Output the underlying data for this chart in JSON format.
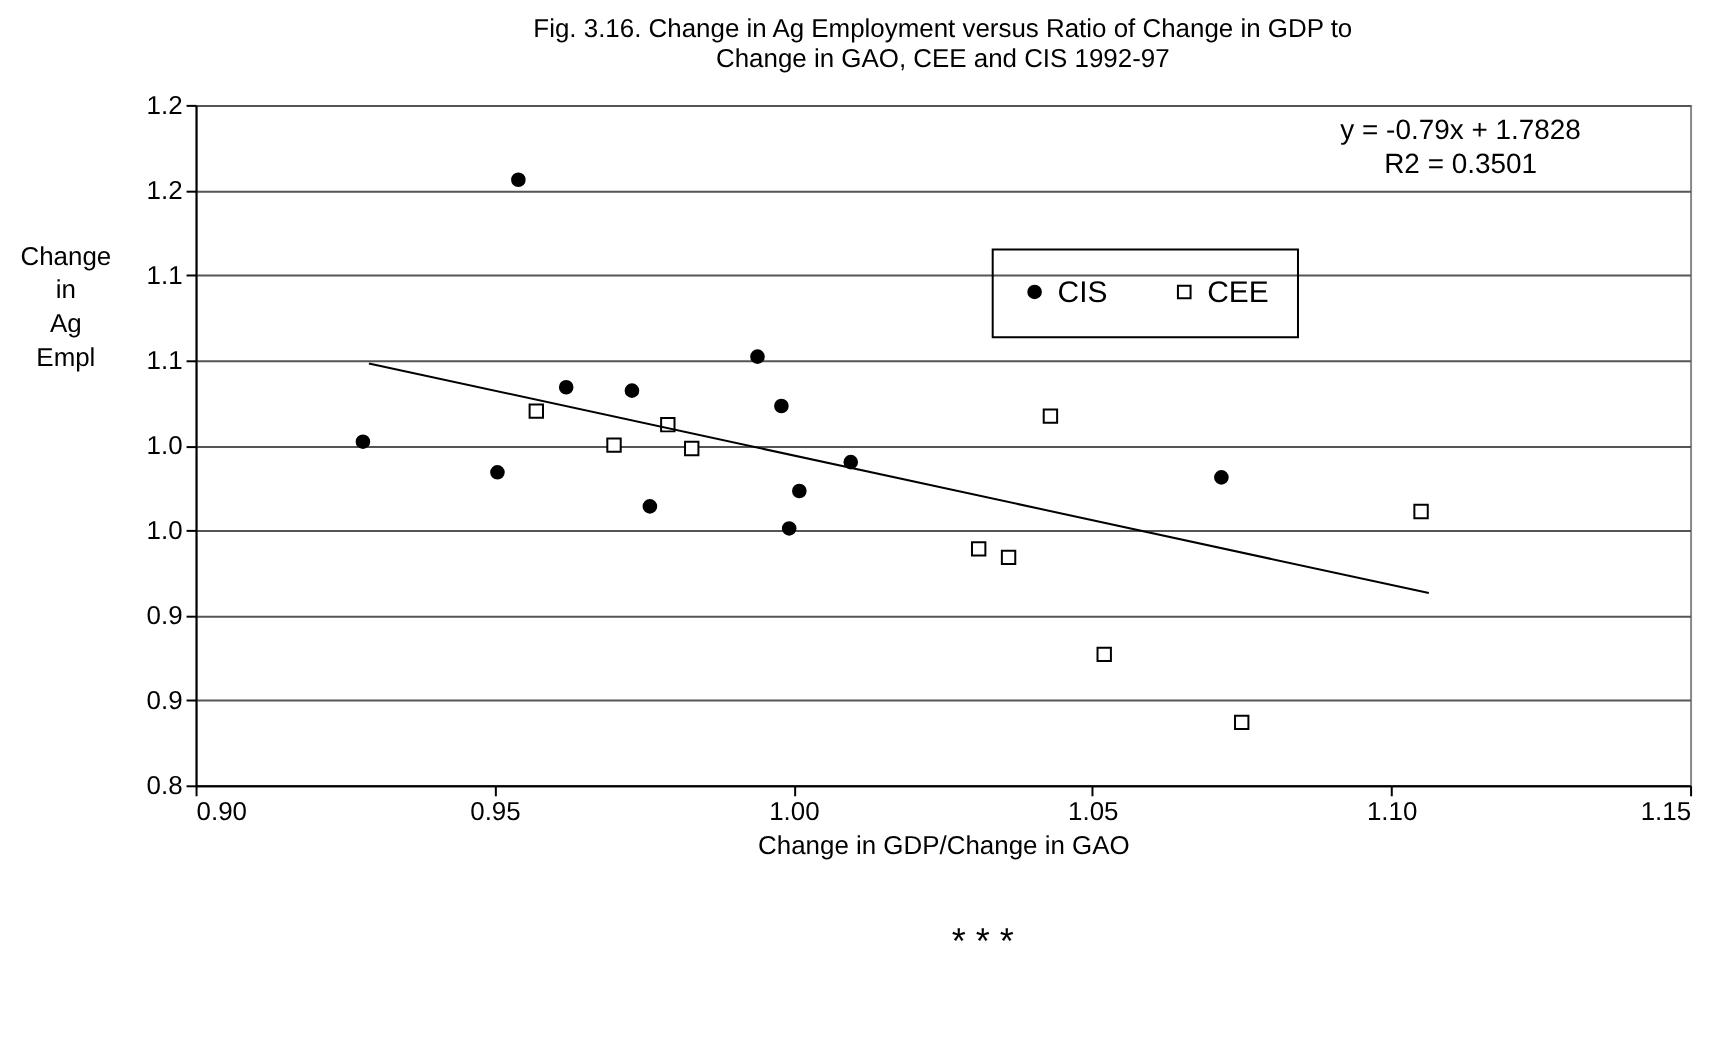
{
  "chart_data": {
    "type": "scatter",
    "title": [
      "Fig. 3.16. Change in Ag Employment versus Ratio of Change in GDP to",
      "Change in GAO, CEE and CIS    1992-97"
    ],
    "xlabel": "Change in GDP/Change in GAO",
    "ylabel": "Change in Ag Empl",
    "series": [
      {
        "name": "CIS",
        "color": "#000000",
        "marker": "circle",
        "x": [
          0.928,
          0.954,
          0.9505,
          0.962,
          0.973,
          0.976,
          0.994,
          0.998,
          1.0096,
          1.001,
          0.9993,
          1.0716
        ],
        "values": [
          1.002,
          1.156,
          0.984,
          1.034,
          1.032,
          0.964,
          1.052,
          1.023,
          0.99,
          0.973,
          0.951,
          0.981
        ]
      },
      {
        "name": "CEE",
        "color": "#000000",
        "marker": "square",
        "x": [
          0.957,
          0.97,
          0.979,
          0.983,
          1.031,
          1.036,
          1.043,
          1.052,
          1.075,
          1.105
        ],
        "values": [
          1.02,
          1.0,
          1.012,
          0.998,
          0.939,
          0.934,
          1.017,
          0.877,
          0.837,
          0.961
        ]
      },
      {
        "type": "line",
        "color": "#000000",
        "line_style": "solid",
        "x": [
          0.929,
          1.1063
        ],
        "values": [
          1.048,
          0.913
        ]
      }
    ],
    "annotations": [
      "y = -0.79x + 1.7828\nR2 = 0.3501",
      "*          *          *"
    ],
    "xlim": [
      0.9,
      1.15
    ],
    "ylim": [
      0.8,
      1.2
    ],
    "xticks": [
      {
        "value": 0.9,
        "label": "0.90"
      },
      {
        "value": 0.95,
        "label": "0.95"
      },
      {
        "value": 1.0,
        "label": "1.00"
      },
      {
        "value": 1.05,
        "label": "1.05"
      },
      {
        "value": 1.1,
        "label": "1.10"
      },
      {
        "value": 1.15,
        "label": "1.15"
      }
    ],
    "yticks": [
      0.8,
      {
        "value": 0.85,
        "label": "0.9"
      },
      0.9,
      {
        "value": 0.95,
        "label": "1.0"
      },
      {
        "value": 1.0,
        "label": "1.0"
      },
      {
        "value": 1.05,
        "label": "1.1"
      },
      1.1,
      {
        "value": 1.15,
        "label": "1.2"
      },
      1.2
    ],
    "grid": "y",
    "legend": "top right"
  }
}
